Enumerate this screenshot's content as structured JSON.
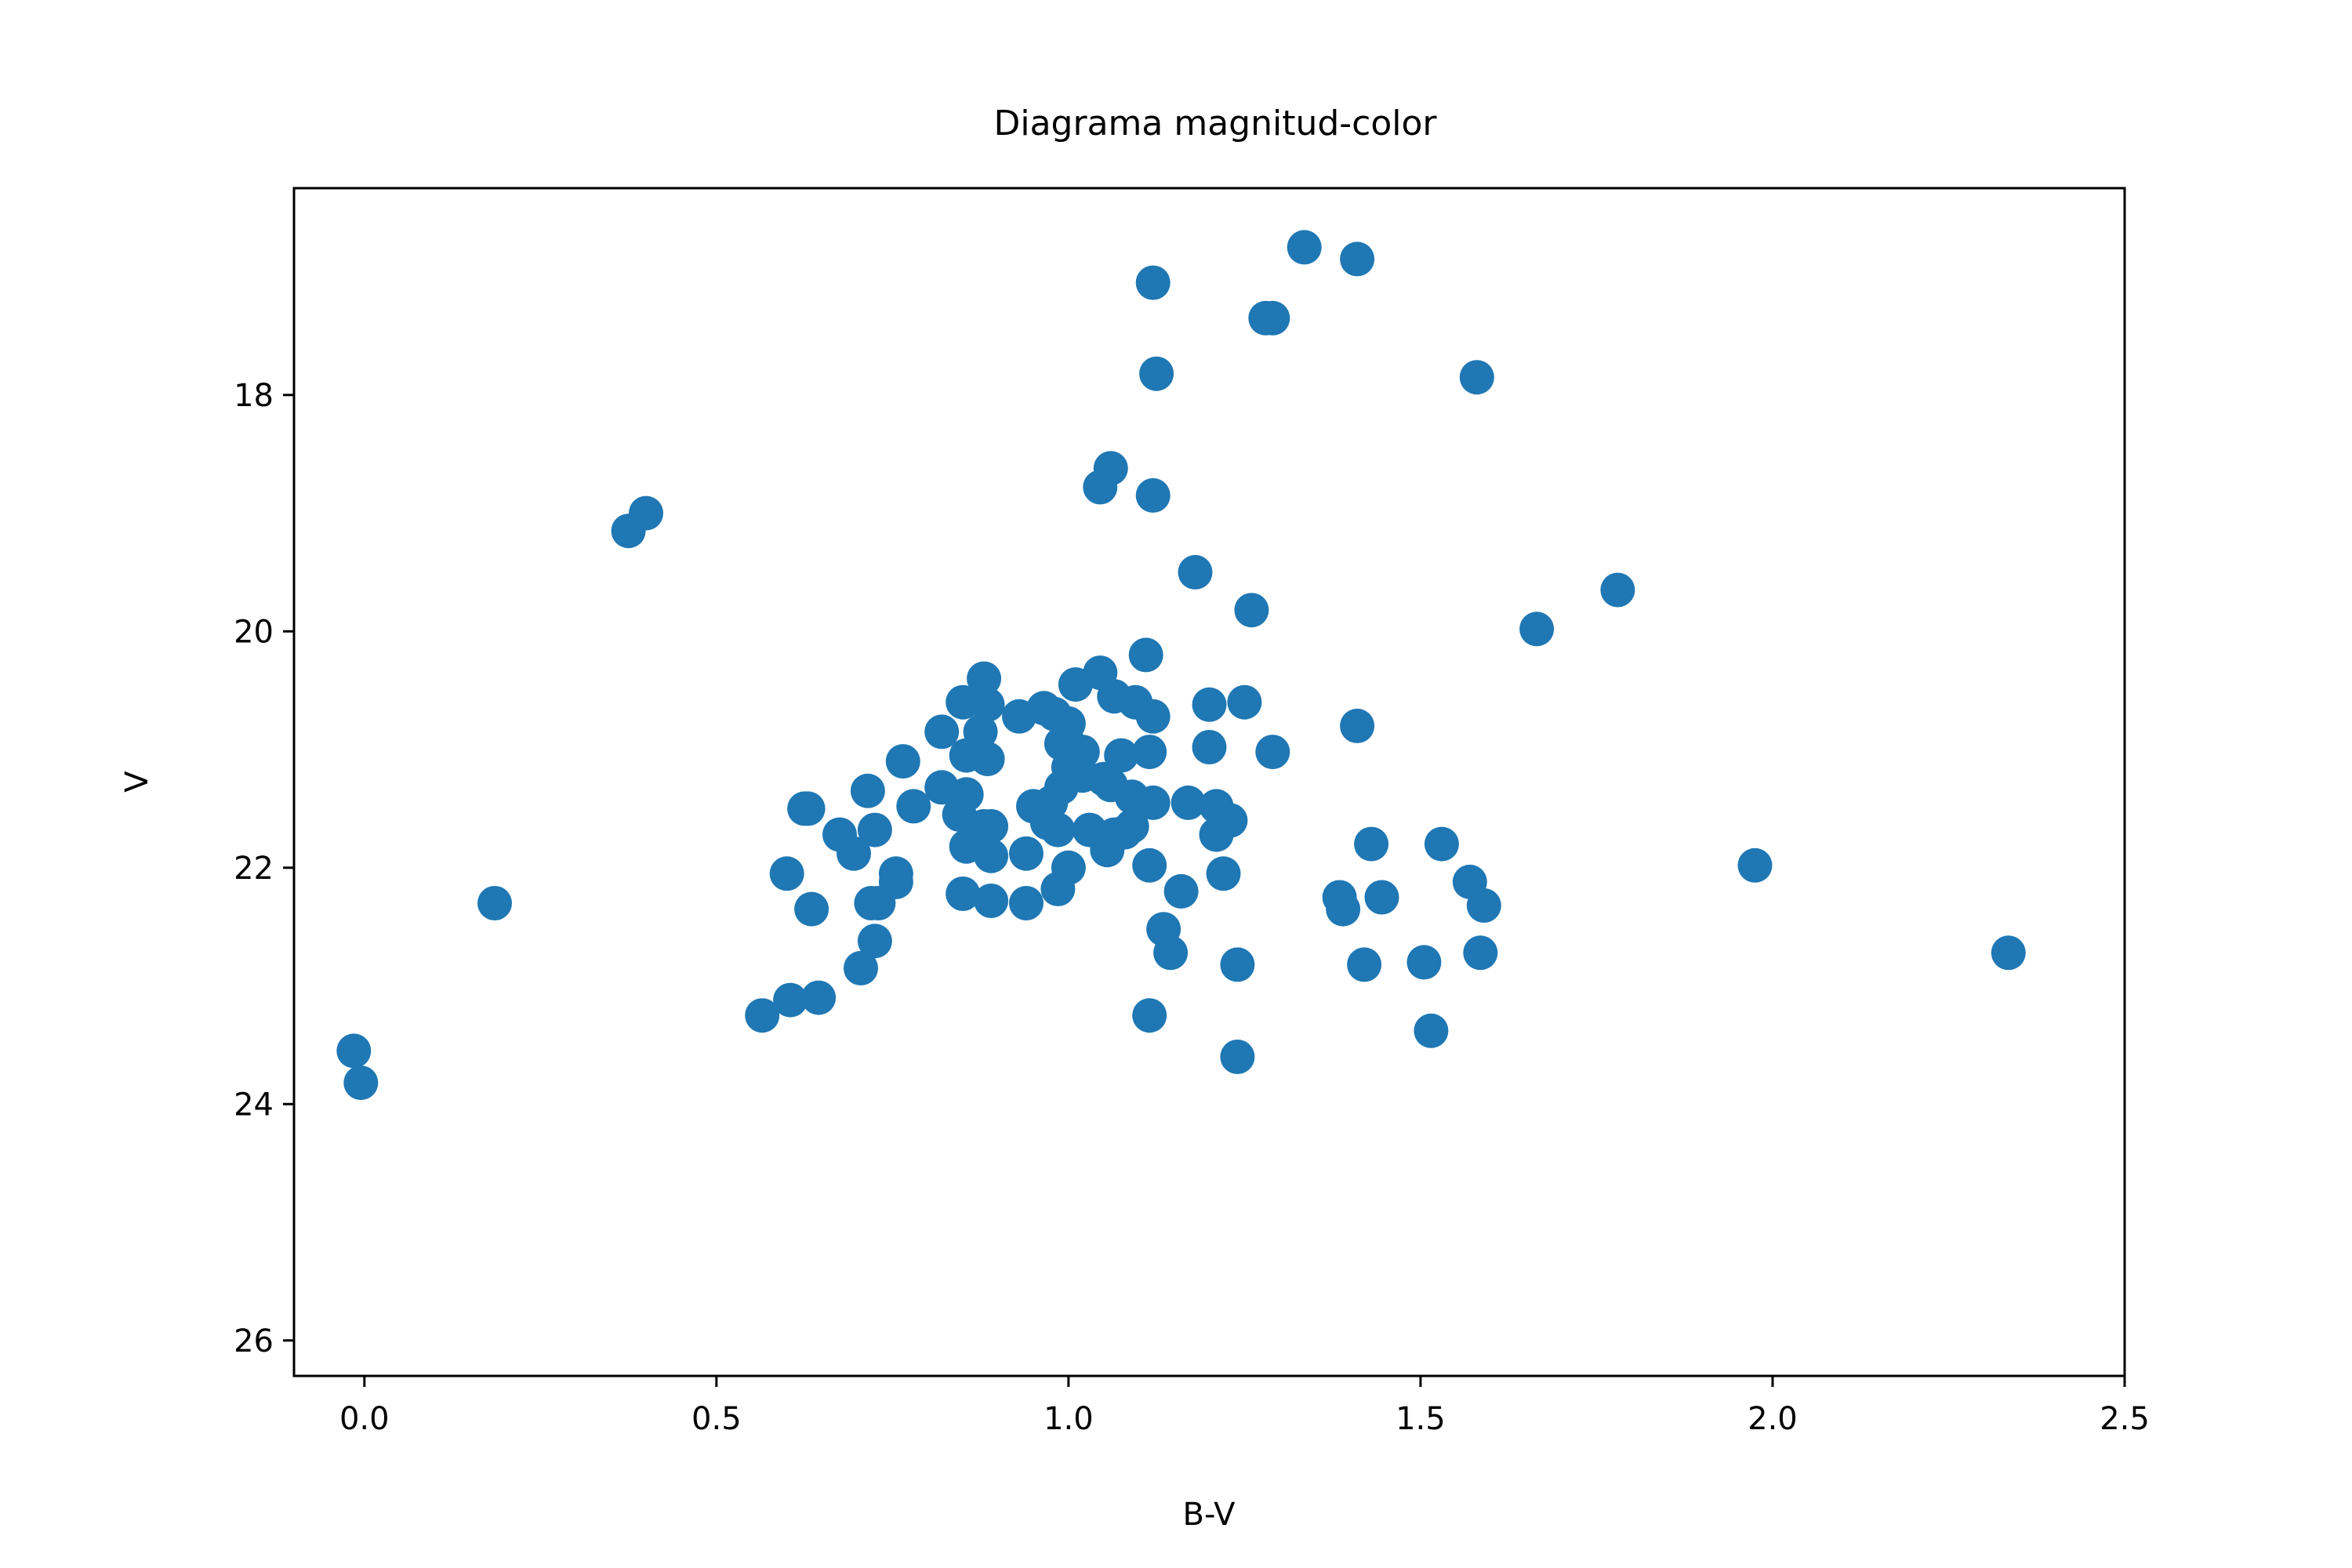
{
  "chart_data": {
    "type": "scatter",
    "title": "Diagrama magnitud-color",
    "xlabel": "B-V",
    "ylabel": "V",
    "xlim": [
      -0.1,
      2.5
    ],
    "ylim": [
      26.3,
      16.25
    ],
    "y_inverted": true,
    "grid": false,
    "legend": "none",
    "color": "#1f77b4",
    "x_ticks": [
      {
        "value": 0.0,
        "label": "0.0"
      },
      {
        "value": 0.5,
        "label": "0.5"
      },
      {
        "value": 1.0,
        "label": "1.0"
      },
      {
        "value": 1.5,
        "label": "1.5"
      },
      {
        "value": 2.0,
        "label": "2.0"
      },
      {
        "value": 2.5,
        "label": "2.5"
      }
    ],
    "y_ticks": [
      {
        "value": 18,
        "label": "18"
      },
      {
        "value": 20,
        "label": "20"
      },
      {
        "value": 22,
        "label": "22"
      },
      {
        "value": 24,
        "label": "24"
      },
      {
        "value": 26,
        "label": "26"
      }
    ],
    "points": [
      [
        1.335,
        16.75
      ],
      [
        1.41,
        16.85
      ],
      [
        1.12,
        17.05
      ],
      [
        1.28,
        17.35
      ],
      [
        1.29,
        17.35
      ],
      [
        1.125,
        17.82
      ],
      [
        1.58,
        17.85
      ],
      [
        0.375,
        19.15
      ],
      [
        0.4,
        19.0
      ],
      [
        1.06,
        18.62
      ],
      [
        1.045,
        18.78
      ],
      [
        1.12,
        18.85
      ],
      [
        1.18,
        19.5
      ],
      [
        1.26,
        19.82
      ],
      [
        1.665,
        19.98
      ],
      [
        1.78,
        19.65
      ],
      [
        1.11,
        20.2
      ],
      [
        1.045,
        20.35
      ],
      [
        0.88,
        20.4
      ],
      [
        1.01,
        20.45
      ],
      [
        1.065,
        20.55
      ],
      [
        1.095,
        20.6
      ],
      [
        0.85,
        20.6
      ],
      [
        0.885,
        20.62
      ],
      [
        0.965,
        20.65
      ],
      [
        1.2,
        20.62
      ],
      [
        1.25,
        20.6
      ],
      [
        0.93,
        20.72
      ],
      [
        1.12,
        20.72
      ],
      [
        0.98,
        20.7
      ],
      [
        1.0,
        20.78
      ],
      [
        0.875,
        20.85
      ],
      [
        0.82,
        20.85
      ],
      [
        1.41,
        20.8
      ],
      [
        0.99,
        20.95
      ],
      [
        1.0,
        20.95
      ],
      [
        1.2,
        20.98
      ],
      [
        1.29,
        21.02
      ],
      [
        1.02,
        21.02
      ],
      [
        1.075,
        21.05
      ],
      [
        1.115,
        21.02
      ],
      [
        0.885,
        21.08
      ],
      [
        0.855,
        21.05
      ],
      [
        0.765,
        21.1
      ],
      [
        1.0,
        21.15
      ],
      [
        1.02,
        21.22
      ],
      [
        1.05,
        21.25
      ],
      [
        1.06,
        21.3
      ],
      [
        0.82,
        21.32
      ],
      [
        0.99,
        21.32
      ],
      [
        0.715,
        21.35
      ],
      [
        0.855,
        21.38
      ],
      [
        1.09,
        21.4
      ],
      [
        1.12,
        21.45
      ],
      [
        1.17,
        21.45
      ],
      [
        0.95,
        21.48
      ],
      [
        0.975,
        21.45
      ],
      [
        1.21,
        21.48
      ],
      [
        0.78,
        21.48
      ],
      [
        0.625,
        21.5
      ],
      [
        0.63,
        21.5
      ],
      [
        0.845,
        21.55
      ],
      [
        1.23,
        21.6
      ],
      [
        0.97,
        21.62
      ],
      [
        0.88,
        21.65
      ],
      [
        1.03,
        21.68
      ],
      [
        0.725,
        21.68
      ],
      [
        1.09,
        21.65
      ],
      [
        1.08,
        21.7
      ],
      [
        0.89,
        21.65
      ],
      [
        0.985,
        21.68
      ],
      [
        0.675,
        21.72
      ],
      [
        1.065,
        21.72
      ],
      [
        1.21,
        21.72
      ],
      [
        0.855,
        21.82
      ],
      [
        1.055,
        21.85
      ],
      [
        1.43,
        21.8
      ],
      [
        1.53,
        21.8
      ],
      [
        0.695,
        21.88
      ],
      [
        0.89,
        21.9
      ],
      [
        0.94,
        21.88
      ],
      [
        1.115,
        21.98
      ],
      [
        1.975,
        21.98
      ],
      [
        1.0,
        22.0
      ],
      [
        0.755,
        22.05
      ],
      [
        0.6,
        22.05
      ],
      [
        1.22,
        22.05
      ],
      [
        0.755,
        22.12
      ],
      [
        1.57,
        22.12
      ],
      [
        0.985,
        22.18
      ],
      [
        1.16,
        22.2
      ],
      [
        0.85,
        22.22
      ],
      [
        1.385,
        22.25
      ],
      [
        1.445,
        22.25
      ],
      [
        0.72,
        22.3
      ],
      [
        0.89,
        22.28
      ],
      [
        0.94,
        22.3
      ],
      [
        0.185,
        22.3
      ],
      [
        0.73,
        22.3
      ],
      [
        1.59,
        22.32
      ],
      [
        0.635,
        22.35
      ],
      [
        1.39,
        22.35
      ],
      [
        1.135,
        22.52
      ],
      [
        0.725,
        22.62
      ],
      [
        1.145,
        22.72
      ],
      [
        1.585,
        22.72
      ],
      [
        2.335,
        22.72
      ],
      [
        1.505,
        22.8
      ],
      [
        1.42,
        22.82
      ],
      [
        1.24,
        22.82
      ],
      [
        0.705,
        22.85
      ],
      [
        0.605,
        23.12
      ],
      [
        0.645,
        23.1
      ],
      [
        0.565,
        23.25
      ],
      [
        1.115,
        23.25
      ],
      [
        1.515,
        23.38
      ],
      [
        1.24,
        23.6
      ],
      [
        -0.015,
        23.55
      ],
      [
        -0.005,
        23.82
      ]
    ]
  }
}
